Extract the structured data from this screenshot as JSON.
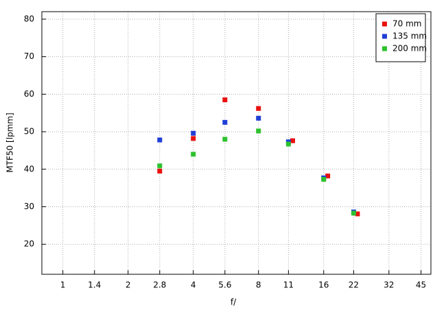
{
  "chart_data": {
    "type": "scatter",
    "x_label": "f/",
    "y_label": "MTF50 [lpmm]",
    "x_log": true,
    "grid": true,
    "legend": "top-right",
    "xlim": [
      0.8,
      50
    ],
    "xticks": [
      1,
      1.4,
      2,
      2.8,
      4,
      5.6,
      8,
      11,
      16,
      22,
      32,
      45
    ],
    "ylim": [
      12,
      82
    ],
    "yticks": [
      20,
      30,
      40,
      50,
      60,
      70,
      80
    ],
    "series": [
      {
        "name": "70 mm",
        "color": "#e8110f",
        "x": [
          2.8,
          4,
          5.6,
          8,
          11.5,
          16.7,
          22.9
        ],
        "values": [
          39.5,
          48.2,
          58.5,
          56.2,
          47.6,
          38.2,
          28.1
        ]
      },
      {
        "name": "135 mm",
        "color": "#1f3fd6",
        "x": [
          2.8,
          4,
          5.6,
          8,
          11,
          16,
          22
        ],
        "values": [
          47.8,
          49.6,
          52.5,
          53.6,
          47.3,
          37.7,
          28.6
        ]
      },
      {
        "name": "200 mm",
        "color": "#2ec12e",
        "x": [
          2.8,
          4,
          5.6,
          8,
          11,
          16,
          22
        ],
        "values": [
          40.9,
          44.0,
          48.0,
          50.2,
          46.7,
          37.3,
          28.3
        ]
      }
    ]
  }
}
